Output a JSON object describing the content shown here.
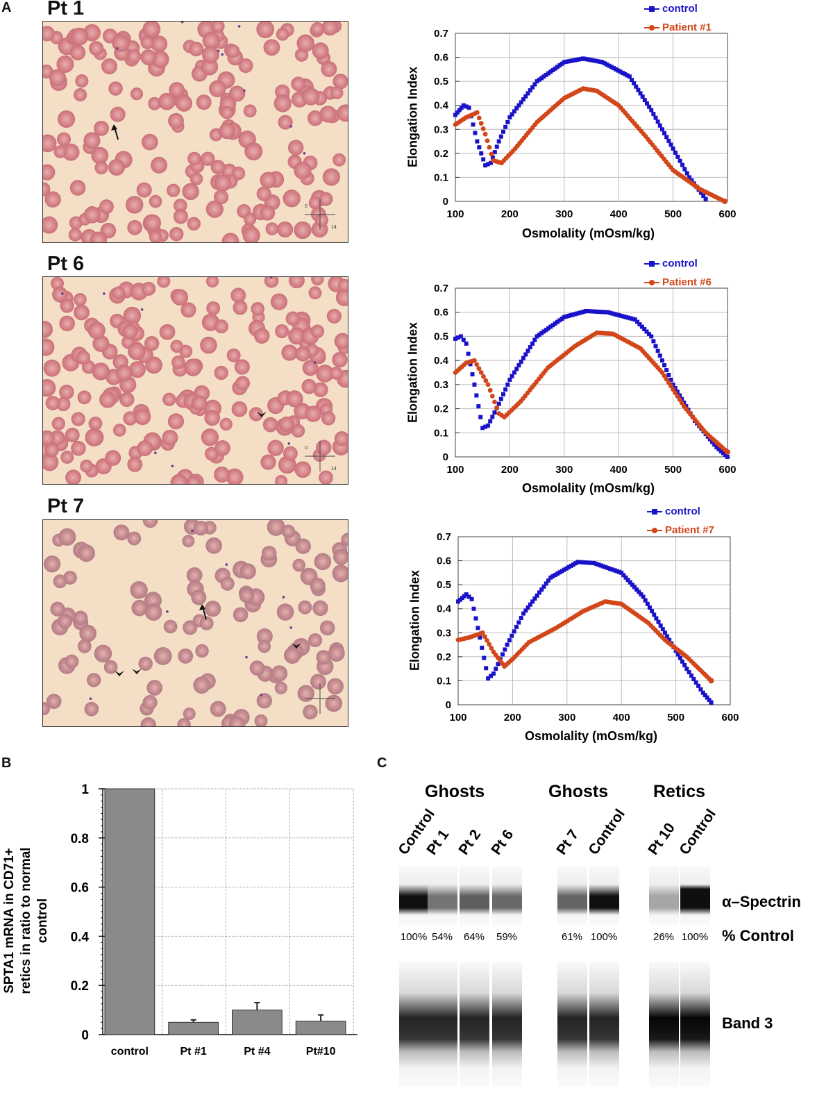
{
  "panel_labels": {
    "a": "A",
    "b": "B",
    "c": "C"
  },
  "micrographs": [
    {
      "label": "Pt 1",
      "scale_marks": [
        "0",
        "14"
      ],
      "arrows": 1,
      "arrowheads": 0
    },
    {
      "label": "Pt 6",
      "scale_marks": [
        "0",
        "14"
      ],
      "arrows": 0,
      "arrowheads": 1
    },
    {
      "label": "Pt 7",
      "scale_marks": [],
      "arrows": 1,
      "arrowheads": 3
    }
  ],
  "colors": {
    "control": "#1a12c8",
    "patient": "#d2461a",
    "bar": "#8a8a8a",
    "micro_bg": "#f4dfc6",
    "cell": "#d58b8f"
  },
  "chart_data": [
    {
      "type": "line",
      "xlabel": "Osmolality (mOsm/kg)",
      "ylabel": "Elongation Index",
      "xlim": [
        100,
        600
      ],
      "ylim": [
        0,
        0.7
      ],
      "grid": true,
      "legend": "top-right",
      "xticks": [
        "100",
        "200",
        "300",
        "400",
        "500",
        "600"
      ],
      "yticks": [
        "0",
        "0.1",
        "0.2",
        "0.3",
        "0.4",
        "0.5",
        "0.6",
        "0.7"
      ],
      "series": [
        {
          "name": "control",
          "marker": "square",
          "x": [
            100,
            115,
            125,
            140,
            155,
            165,
            180,
            200,
            250,
            300,
            335,
            370,
            420,
            460,
            500,
            530,
            560
          ],
          "y": [
            0.36,
            0.4,
            0.39,
            0.25,
            0.15,
            0.16,
            0.25,
            0.35,
            0.5,
            0.58,
            0.595,
            0.58,
            0.52,
            0.38,
            0.22,
            0.1,
            0.01
          ]
        },
        {
          "name": "Patient #1",
          "marker": "circle",
          "x": [
            100,
            120,
            140,
            155,
            170,
            185,
            210,
            250,
            300,
            335,
            360,
            400,
            450,
            500,
            550,
            595
          ],
          "y": [
            0.32,
            0.35,
            0.37,
            0.28,
            0.17,
            0.16,
            0.22,
            0.33,
            0.43,
            0.47,
            0.46,
            0.4,
            0.27,
            0.13,
            0.05,
            0.0
          ]
        }
      ]
    },
    {
      "type": "line",
      "xlabel": "Osmolality (mOsm/kg)",
      "ylabel": "Elongation Index",
      "xlim": [
        100,
        600
      ],
      "ylim": [
        0,
        0.7
      ],
      "grid": true,
      "legend": "top-right",
      "xticks": [
        "100",
        "200",
        "300",
        "400",
        "500",
        "600"
      ],
      "yticks": [
        "0",
        "0.1",
        "0.2",
        "0.3",
        "0.4",
        "0.5",
        "0.6",
        "0.7"
      ],
      "series": [
        {
          "name": "control",
          "marker": "square",
          "x": [
            100,
            110,
            120,
            135,
            150,
            160,
            180,
            200,
            250,
            300,
            340,
            380,
            430,
            460,
            500,
            540,
            580,
            600
          ],
          "y": [
            0.49,
            0.5,
            0.47,
            0.3,
            0.12,
            0.13,
            0.22,
            0.32,
            0.5,
            0.58,
            0.605,
            0.6,
            0.57,
            0.5,
            0.3,
            0.15,
            0.04,
            0.0
          ]
        },
        {
          "name": "Patient #6",
          "marker": "circle",
          "x": [
            100,
            120,
            135,
            160,
            180,
            190,
            220,
            270,
            320,
            360,
            390,
            440,
            480,
            520,
            560,
            600
          ],
          "y": [
            0.35,
            0.39,
            0.4,
            0.3,
            0.18,
            0.165,
            0.23,
            0.37,
            0.46,
            0.515,
            0.51,
            0.45,
            0.35,
            0.21,
            0.1,
            0.02
          ]
        }
      ]
    },
    {
      "type": "line",
      "xlabel": "Osmolality (mOsm/kg)",
      "ylabel": "Elongation Index",
      "xlim": [
        100,
        600
      ],
      "ylim": [
        0,
        0.7
      ],
      "grid": true,
      "legend": "top-right",
      "xticks": [
        "100",
        "200",
        "300",
        "400",
        "500",
        "600"
      ],
      "yticks": [
        "0",
        "0.1",
        "0.2",
        "0.3",
        "0.4",
        "0.5",
        "0.6",
        "0.7"
      ],
      "series": [
        {
          "name": "control",
          "marker": "square",
          "x": [
            100,
            115,
            125,
            140,
            155,
            165,
            190,
            220,
            270,
            320,
            350,
            400,
            440,
            480,
            520,
            550,
            565
          ],
          "y": [
            0.43,
            0.46,
            0.44,
            0.28,
            0.11,
            0.13,
            0.25,
            0.38,
            0.53,
            0.595,
            0.59,
            0.55,
            0.45,
            0.3,
            0.15,
            0.05,
            0.01
          ]
        },
        {
          "name": "Patient #7",
          "marker": "circle",
          "x": [
            100,
            120,
            145,
            165,
            185,
            200,
            230,
            280,
            330,
            370,
            400,
            450,
            480,
            520,
            565
          ],
          "y": [
            0.27,
            0.28,
            0.3,
            0.22,
            0.16,
            0.19,
            0.26,
            0.32,
            0.39,
            0.43,
            0.42,
            0.34,
            0.27,
            0.2,
            0.1
          ]
        }
      ]
    },
    {
      "type": "bar",
      "ylabel": "SPTA1 mRNA in CD71+ retics in ratio to normal control",
      "categories": [
        "control",
        "Pt #1",
        "Pt #4",
        "Pt#10"
      ],
      "values": [
        1.0,
        0.05,
        0.1,
        0.055
      ],
      "errors": [
        0.0,
        0.01,
        0.03,
        0.025
      ],
      "ylim": [
        0,
        1
      ],
      "grid": true,
      "yticks": [
        "0",
        "0.2",
        "0.4",
        "0.6",
        "0.8",
        "1"
      ]
    }
  ],
  "blot": {
    "groups": [
      {
        "title": "Ghosts",
        "lanes": [
          {
            "label": "Control",
            "pct": "100%",
            "value": 100
          },
          {
            "label": "Pt 1",
            "pct": "54%",
            "value": 54
          },
          {
            "label": "Pt 2",
            "pct": "64%",
            "value": 64
          },
          {
            "label": "Pt 6",
            "pct": "59%",
            "value": 59
          }
        ]
      },
      {
        "title": "Ghosts",
        "lanes": [
          {
            "label": "Pt 7",
            "pct": "61%",
            "value": 61
          },
          {
            "label": "Control",
            "pct": "100%",
            "value": 100
          }
        ]
      },
      {
        "title": "Retics",
        "lanes": [
          {
            "label": "Pt 10",
            "pct": "26%",
            "value": 26
          },
          {
            "label": "Control",
            "pct": "100%",
            "value": 100
          }
        ]
      }
    ],
    "row_labels": {
      "spectrin": "α–Spectrin",
      "pct": "% Control",
      "band3": "Band 3"
    }
  }
}
